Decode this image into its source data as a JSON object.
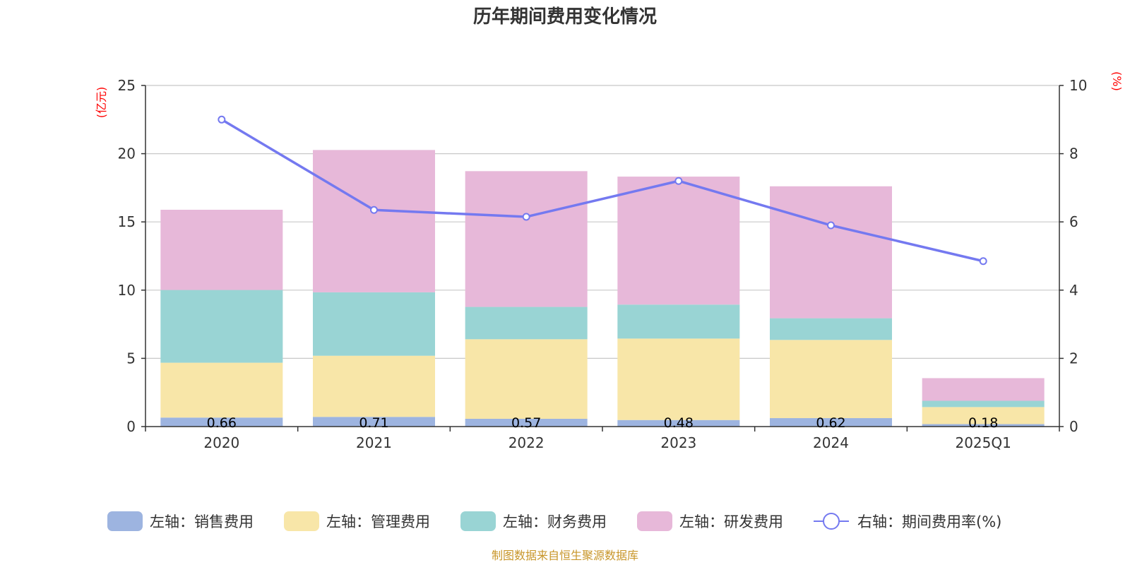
{
  "title": "历年期间费用变化情况",
  "source_note": "制图数据来自恒生聚源数据库",
  "chart_data": {
    "type": "bar",
    "stacked": true,
    "title": "历年期间费用变化情况",
    "categories": [
      "2020",
      "2021",
      "2022",
      "2023",
      "2024",
      "2025Q1"
    ],
    "left_axis": {
      "unit": "(亿元)",
      "ylim": [
        0,
        25
      ],
      "ticks": [
        "0",
        "5",
        "10",
        "15",
        "20",
        "25"
      ],
      "tick_values": [
        0,
        5,
        10,
        15,
        20,
        25
      ]
    },
    "right_axis": {
      "unit": "(%)",
      "ylim": [
        0,
        10
      ],
      "ticks": [
        "0",
        "2",
        "4",
        "6",
        "8",
        "10"
      ],
      "tick_values": [
        0,
        2,
        4,
        6,
        8,
        10
      ]
    },
    "grid": true,
    "legend_position": "bottom",
    "series": [
      {
        "name": "左轴：销售费用",
        "axis": "left",
        "color": "#9db4e0",
        "values": [
          0.66,
          0.71,
          0.57,
          0.48,
          0.62,
          0.18
        ],
        "labels": [
          "0.66",
          "0.71",
          "0.57",
          "0.48",
          "0.62",
          "0.18"
        ]
      },
      {
        "name": "左轴：管理费用",
        "axis": "left",
        "color": "#f8e6a8",
        "values": [
          4.02,
          4.48,
          5.83,
          5.97,
          5.73,
          1.25
        ]
      },
      {
        "name": "左轴：财务费用",
        "axis": "left",
        "color": "#99d4d4",
        "values": [
          5.33,
          4.65,
          2.37,
          2.49,
          1.59,
          0.46
        ]
      },
      {
        "name": "左轴：研发费用",
        "axis": "left",
        "color": "#e7b8d9",
        "values": [
          5.88,
          10.43,
          9.95,
          9.38,
          9.67,
          1.66
        ]
      }
    ],
    "line_series": {
      "name": "右轴：期间费用率(%)",
      "axis": "right",
      "color": "#7479f0",
      "values": [
        9.0,
        6.35,
        6.15,
        7.2,
        5.9,
        4.85
      ]
    }
  }
}
